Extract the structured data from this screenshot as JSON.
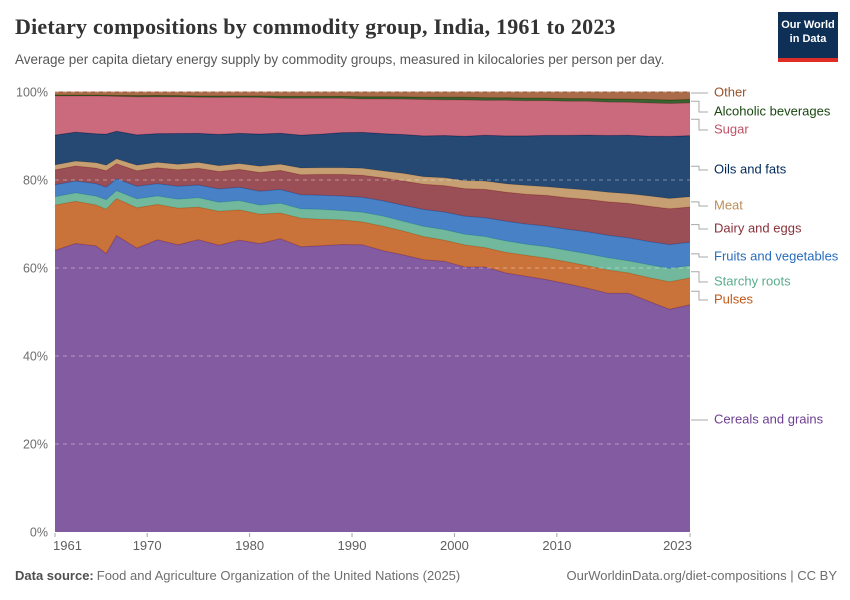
{
  "header": {
    "title": "Dietary compositions by commodity group, India, 1961 to 2023",
    "subtitle": "Average per capita dietary energy supply by commodity groups, measured in kilocalories per person per day."
  },
  "logo": {
    "line1": "Our World",
    "line2": "in Data",
    "bg_color": "#0E2F56",
    "bar_color": "#DE2D26"
  },
  "footer": {
    "source_label": "Data source:",
    "source_value": "Food and Agriculture Organization of the United Nations (2025)",
    "credit": "OurWorldinData.org/diet-compositions | CC BY"
  },
  "chart_data": {
    "type": "area",
    "stacked": true,
    "relative": true,
    "unit": "%",
    "title": "Dietary compositions by commodity group, India, 1961 to 2023",
    "ylim": [
      0,
      100
    ],
    "y_ticks": [
      0,
      20,
      40,
      60,
      80,
      100
    ],
    "x_ticks": [
      1961,
      1970,
      1980,
      1990,
      2000,
      2010,
      2023
    ],
    "grid": "dashed-horizontal",
    "legend_position": "right",
    "x": [
      1961,
      1963,
      1965,
      1966,
      1967,
      1969,
      1971,
      1973,
      1975,
      1977,
      1979,
      1981,
      1983,
      1985,
      1987,
      1989,
      1991,
      1993,
      1995,
      1997,
      1999,
      2001,
      2003,
      2005,
      2007,
      2009,
      2011,
      2013,
      2015,
      2017,
      2019,
      2021,
      2023
    ],
    "series": [
      {
        "key": "cereals",
        "label": "Cereals and grains",
        "color": "#6D3E91",
        "values": [
          64.0,
          65.5,
          64.3,
          61.5,
          67.3,
          63.5,
          66.0,
          64.3,
          66.3,
          64.2,
          65.6,
          64.5,
          66.2,
          64.2,
          64.6,
          65.2,
          65.5,
          64.2,
          62.6,
          61.4,
          61.6,
          59.8,
          60.1,
          59.0,
          58.3,
          57.6,
          56.6,
          55.4,
          54.3,
          54.0,
          52.3,
          50.2,
          51.6
        ]
      },
      {
        "key": "pulses",
        "label": "Pulses",
        "color": "#C05917",
        "values": [
          10.3,
          9.6,
          9.2,
          9.8,
          8.4,
          9.0,
          8.0,
          8.2,
          7.4,
          7.6,
          6.8,
          6.6,
          5.8,
          6.4,
          6.0,
          5.6,
          5.2,
          5.6,
          5.4,
          5.2,
          4.8,
          5.0,
          4.4,
          4.7,
          4.8,
          4.9,
          5.0,
          5.1,
          5.3,
          4.6,
          5.4,
          6.2,
          6.1
        ]
      },
      {
        "key": "starchy",
        "label": "Starchy roots",
        "color": "#58AC8C",
        "values": [
          1.9,
          1.9,
          2.0,
          2.1,
          1.8,
          2.0,
          1.9,
          2.0,
          2.1,
          2.0,
          2.1,
          2.0,
          2.2,
          2.1,
          2.2,
          2.1,
          2.2,
          2.3,
          2.2,
          2.3,
          2.4,
          2.4,
          2.5,
          2.6,
          2.5,
          2.6,
          2.6,
          2.7,
          2.8,
          2.7,
          2.9,
          3.0,
          2.8
        ]
      },
      {
        "key": "fruitveg",
        "label": "Fruits and vegetables",
        "color": "#286BBB",
        "values": [
          2.7,
          2.7,
          2.8,
          2.8,
          2.7,
          2.8,
          2.8,
          2.9,
          2.9,
          3.0,
          3.0,
          3.1,
          3.1,
          3.2,
          3.2,
          3.3,
          3.4,
          3.5,
          3.6,
          3.8,
          4.0,
          4.1,
          4.3,
          4.5,
          4.6,
          4.7,
          4.8,
          5.0,
          5.1,
          5.2,
          5.3,
          5.4,
          5.3
        ]
      },
      {
        "key": "dairy",
        "label": "Dairy and eggs",
        "color": "#883039",
        "values": [
          3.4,
          3.4,
          3.5,
          3.6,
          3.4,
          3.5,
          3.6,
          3.7,
          3.8,
          3.9,
          4.0,
          4.2,
          4.3,
          4.5,
          4.7,
          4.9,
          5.0,
          5.2,
          5.5,
          5.7,
          6.0,
          6.2,
          6.4,
          6.6,
          6.8,
          7.0,
          7.2,
          7.4,
          7.6,
          7.8,
          8.0,
          8.1,
          8.0
        ]
      },
      {
        "key": "meat",
        "label": "Meat",
        "color": "#BC8E5A",
        "values": [
          1.1,
          1.1,
          1.2,
          1.2,
          1.1,
          1.2,
          1.2,
          1.2,
          1.3,
          1.3,
          1.3,
          1.4,
          1.4,
          1.5,
          1.5,
          1.5,
          1.6,
          1.6,
          1.7,
          1.7,
          1.8,
          1.8,
          1.9,
          1.9,
          2.0,
          2.0,
          2.1,
          2.1,
          2.2,
          2.2,
          2.3,
          2.3,
          2.3
        ]
      },
      {
        "key": "oils",
        "label": "Oils and fats",
        "color": "#00295B",
        "values": [
          6.8,
          6.6,
          6.5,
          6.9,
          6.3,
          6.8,
          6.5,
          6.9,
          6.6,
          7.0,
          6.8,
          7.2,
          7.0,
          7.4,
          7.6,
          8.0,
          8.2,
          8.5,
          8.8,
          9.2,
          9.6,
          10.0,
          10.4,
          10.9,
          11.3,
          11.7,
          12.1,
          12.5,
          12.9,
          13.2,
          13.6,
          14.0,
          13.9
        ]
      },
      {
        "key": "sugar",
        "label": "Sugar",
        "color": "#C15065",
        "values": [
          8.9,
          8.2,
          8.5,
          8.4,
          7.9,
          8.5,
          8.3,
          8.2,
          8.2,
          8.3,
          8.1,
          8.2,
          7.9,
          8.3,
          8.1,
          7.8,
          7.6,
          7.9,
          8.0,
          8.2,
          8.1,
          8.2,
          7.9,
          8.1,
          8.0,
          7.9,
          7.8,
          7.7,
          7.6,
          7.5,
          7.5,
          7.4,
          7.4
        ]
      },
      {
        "key": "alcohol",
        "label": "Alcoholic beverages",
        "color": "#18470F",
        "values": [
          0.2,
          0.2,
          0.2,
          0.2,
          0.2,
          0.3,
          0.3,
          0.3,
          0.3,
          0.3,
          0.3,
          0.3,
          0.4,
          0.4,
          0.4,
          0.4,
          0.5,
          0.5,
          0.5,
          0.5,
          0.6,
          0.6,
          0.6,
          0.6,
          0.6,
          0.6,
          0.6,
          0.6,
          0.7,
          0.7,
          0.8,
          0.8,
          0.8
        ]
      },
      {
        "key": "other",
        "label": "Other",
        "color": "#9A5129",
        "values": [
          0.7,
          0.7,
          0.7,
          0.7,
          0.8,
          0.8,
          0.8,
          0.8,
          0.9,
          0.9,
          0.9,
          0.9,
          1.0,
          1.0,
          1.0,
          1.0,
          1.1,
          1.1,
          1.1,
          1.2,
          1.2,
          1.2,
          1.3,
          1.3,
          1.4,
          1.4,
          1.5,
          1.5,
          1.6,
          1.6,
          1.7,
          1.8,
          1.7
        ]
      }
    ]
  }
}
